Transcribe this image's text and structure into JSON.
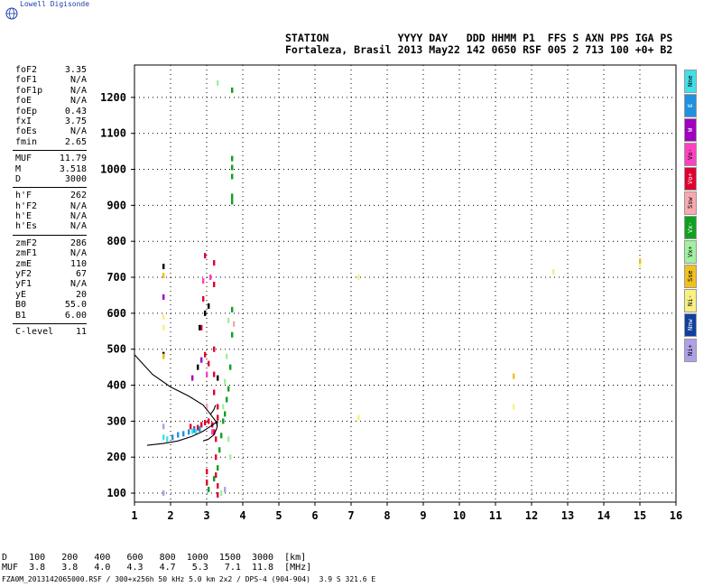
{
  "brand": {
    "text": "Lowell Digisonde"
  },
  "header": {
    "line1": "STATION           YYYY DAY   DDD HHMM P1  FFS S AXN PPS IGA PS",
    "line2": "Fortaleza, Brasil 2013 May22 142 0650 RSF 005 2 713 100 +0+ B2"
  },
  "params": [
    {
      "label": "foF2",
      "value": "3.35"
    },
    {
      "label": "foF1",
      "value": "N/A"
    },
    {
      "label": "foF1p",
      "value": "N/A"
    },
    {
      "label": "foE",
      "value": "N/A"
    },
    {
      "label": "foEp",
      "value": "0.43"
    },
    {
      "label": "fxI",
      "value": "3.75"
    },
    {
      "label": "foEs",
      "value": "N/A"
    },
    {
      "label": "fmin",
      "value": "2.65"
    },
    {
      "sep": true
    },
    {
      "label": "MUF",
      "value": "11.79"
    },
    {
      "label": "M",
      "value": "3.518"
    },
    {
      "label": "D",
      "value": "3000"
    },
    {
      "sep": true
    },
    {
      "label": "h'F",
      "value": "262"
    },
    {
      "label": "h'F2",
      "value": "N/A"
    },
    {
      "label": "h'E",
      "value": "N/A"
    },
    {
      "label": "h'Es",
      "value": "N/A"
    },
    {
      "sep": true
    },
    {
      "label": "zmF2",
      "value": "286"
    },
    {
      "label": "zmF1",
      "value": "N/A"
    },
    {
      "label": "zmE",
      "value": "110"
    },
    {
      "label": "yF2",
      "value": "67"
    },
    {
      "label": "yF1",
      "value": "N/A"
    },
    {
      "label": "yE",
      "value": "20"
    },
    {
      "label": "B0",
      "value": "55.0"
    },
    {
      "label": "B1",
      "value": "6.00"
    },
    {
      "sep": true
    },
    {
      "label": "C-level",
      "value": "11"
    }
  ],
  "legend": [
    {
      "label": "Nne",
      "color": "#40e0e8"
    },
    {
      "label": "E",
      "color": "#2090e0"
    },
    {
      "label": "W",
      "color": "#a000c0"
    },
    {
      "label": "Vo-",
      "color": "#ff40c0"
    },
    {
      "label": "Vo+",
      "color": "#e00030"
    },
    {
      "label": "Ssw",
      "color": "#f8a8b0"
    },
    {
      "label": "Vx-",
      "color": "#10a020"
    },
    {
      "label": "Vx+",
      "color": "#a0f0a0"
    },
    {
      "label": "Sse",
      "color": "#f0c020"
    },
    {
      "label": "Ni-",
      "color": "#f8f080"
    },
    {
      "label": "Nnw",
      "color": "#1040a0"
    },
    {
      "label": "Ni+",
      "color": "#b0a0e8"
    }
  ],
  "muf_table": {
    "row1": "D    100   200   400   600   800  1000  1500  3000  [km]",
    "row2": "MUF  3.8   3.8   4.0   4.3   4.7   5.3   7.1  11.8  [MHz]"
  },
  "footer": "FZA0M_2013142065000.RSF / 300+x256h 50 kHz 5.0 km 2x2 / DPS-4 (904-904)  3.9 S 321.6 E",
  "chart_data": {
    "type": "scatter",
    "title": "",
    "xlabel": "",
    "ylabel": "",
    "xlim": [
      1,
      16
    ],
    "ylim": [
      75,
      1290
    ],
    "x_ticks": [
      1,
      2,
      3,
      4,
      5,
      6,
      7,
      8,
      9,
      10,
      11,
      12,
      13,
      14,
      15,
      16
    ],
    "y_ticks": [
      100,
      200,
      300,
      400,
      500,
      600,
      700,
      800,
      900,
      1000,
      1100,
      1200
    ],
    "grid": true,
    "series": [
      {
        "color": "#e00030",
        "points": [
          [
            2.55,
            285
          ],
          [
            2.65,
            278
          ],
          [
            2.75,
            282
          ],
          [
            2.85,
            290
          ],
          [
            2.95,
            296
          ],
          [
            3.05,
            300
          ],
          [
            3.15,
            290
          ],
          [
            3.2,
            270
          ],
          [
            3.25,
            250
          ],
          [
            3.25,
            200
          ],
          [
            3.25,
            150
          ],
          [
            3.3,
            120
          ],
          [
            3.3,
            95
          ],
          [
            3.2,
            500
          ],
          [
            3.2,
            430
          ],
          [
            3.2,
            380
          ],
          [
            3.05,
            460
          ],
          [
            2.95,
            485
          ],
          [
            2.85,
            560
          ],
          [
            2.9,
            640
          ],
          [
            2.95,
            760
          ],
          [
            3.2,
            680
          ],
          [
            3.2,
            740
          ],
          [
            3.0,
            130
          ],
          [
            3.0,
            160
          ],
          [
            3.3,
            310
          ],
          [
            3.3,
            340
          ]
        ]
      },
      {
        "color": "#10a020",
        "points": [
          [
            3.7,
            1220
          ],
          [
            3.7,
            1030
          ],
          [
            3.7,
            1005
          ],
          [
            3.7,
            980
          ],
          [
            3.7,
            925
          ],
          [
            3.7,
            910
          ],
          [
            3.7,
            610
          ],
          [
            3.7,
            540
          ],
          [
            3.65,
            450
          ],
          [
            3.6,
            390
          ],
          [
            3.55,
            360
          ],
          [
            3.5,
            320
          ],
          [
            3.45,
            300
          ],
          [
            3.4,
            260
          ],
          [
            3.35,
            220
          ],
          [
            3.3,
            170
          ],
          [
            3.2,
            140
          ],
          [
            3.05,
            110
          ]
        ]
      },
      {
        "color": "#2090e0",
        "points": [
          [
            2.05,
            255
          ],
          [
            2.2,
            262
          ],
          [
            2.35,
            265
          ],
          [
            2.5,
            270
          ],
          [
            2.65,
            275
          ],
          [
            2.8,
            278
          ]
        ]
      },
      {
        "color": "#40e0e8",
        "points": [
          [
            1.8,
            255
          ],
          [
            1.9,
            250
          ],
          [
            2.6,
            272
          ],
          [
            2.7,
            270
          ]
        ]
      },
      {
        "color": "#000000",
        "points": [
          [
            1.8,
            730
          ],
          [
            1.8,
            485
          ],
          [
            2.8,
            560
          ],
          [
            2.95,
            600
          ],
          [
            3.05,
            620
          ],
          [
            2.75,
            450
          ],
          [
            3.3,
            420
          ]
        ]
      },
      {
        "color": "#a000c0",
        "points": [
          [
            1.8,
            645
          ],
          [
            2.6,
            420
          ],
          [
            2.85,
            470
          ]
        ]
      },
      {
        "color": "#a0f0a0",
        "points": [
          [
            3.6,
            580
          ],
          [
            3.55,
            480
          ],
          [
            3.5,
            410
          ],
          [
            3.45,
            340
          ],
          [
            3.6,
            250
          ],
          [
            3.65,
            200
          ],
          [
            3.4,
            100
          ],
          [
            3.3,
            1240
          ]
        ]
      },
      {
        "color": "#ff40c0",
        "points": [
          [
            2.9,
            690
          ],
          [
            3.1,
            700
          ],
          [
            3.0,
            430
          ],
          [
            3.15,
            270
          ]
        ]
      },
      {
        "color": "#f8f080",
        "points": [
          [
            1.8,
            590
          ],
          [
            1.8,
            560
          ],
          [
            7.2,
            700
          ],
          [
            7.2,
            310
          ],
          [
            11.5,
            340
          ],
          [
            12.6,
            715
          ],
          [
            15.0,
            735
          ]
        ]
      },
      {
        "color": "#f0c020",
        "points": [
          [
            1.8,
            705
          ],
          [
            1.8,
            480
          ],
          [
            11.5,
            425
          ],
          [
            15.0,
            745
          ]
        ]
      },
      {
        "color": "#b0a0e8",
        "points": [
          [
            1.8,
            100
          ],
          [
            1.8,
            285
          ],
          [
            3.5,
            110
          ]
        ]
      },
      {
        "color": "#f8a8b0",
        "points": [
          [
            3.75,
            570
          ],
          [
            3.0,
            340
          ]
        ]
      }
    ],
    "traces": [
      {
        "color": "#000000",
        "points": [
          [
            1.0,
            485
          ],
          [
            1.5,
            430
          ],
          [
            2.0,
            395
          ],
          [
            2.5,
            370
          ],
          [
            2.9,
            345
          ],
          [
            3.1,
            320
          ],
          [
            3.25,
            300
          ],
          [
            3.3,
            285
          ]
        ]
      },
      {
        "color": "#000000",
        "points": [
          [
            1.35,
            233
          ],
          [
            1.8,
            238
          ],
          [
            2.2,
            245
          ],
          [
            2.6,
            258
          ],
          [
            2.9,
            272
          ],
          [
            3.1,
            285
          ],
          [
            3.25,
            296
          ],
          [
            3.3,
            300
          ],
          [
            3.28,
            280
          ],
          [
            3.2,
            262
          ],
          [
            3.05,
            250
          ],
          [
            2.9,
            245
          ]
        ]
      },
      {
        "color": "#000000",
        "points": [
          [
            3.1,
            318
          ],
          [
            3.2,
            332
          ],
          [
            3.25,
            345
          ]
        ]
      }
    ]
  }
}
